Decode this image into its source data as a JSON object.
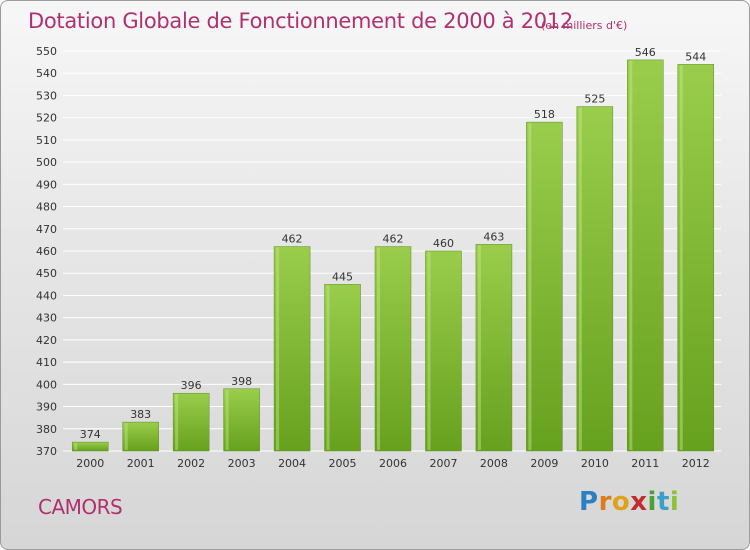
{
  "header": {
    "title": "Dotation Globale de Fonctionnement de 2000 à 2012",
    "unit_note": "(en milliers d'€)"
  },
  "footer": {
    "town": "CAMORS",
    "logo_letters": [
      "P",
      "r",
      "o",
      "x",
      "i",
      "t",
      "i"
    ],
    "logo_colors": [
      "#2b7fc2",
      "#e07b1a",
      "#e0a21a",
      "#c22e2e",
      "#4aa037",
      "#3aa0c8",
      "#8cc23a"
    ]
  },
  "colors": {
    "title": "#b03070",
    "bar_light": "#9acd4c",
    "bar_dark": "#66a11e",
    "grid": "#ffffff",
    "axis_text": "#333333"
  },
  "chart_data": {
    "type": "bar",
    "title": "Dotation Globale de Fonctionnement de 2000 à 2012",
    "subtitle": "(en milliers d'€)",
    "categories": [
      "2000",
      "2001",
      "2002",
      "2003",
      "2004",
      "2005",
      "2006",
      "2007",
      "2008",
      "2009",
      "2010",
      "2011",
      "2012"
    ],
    "values": [
      374,
      383,
      396,
      398,
      462,
      445,
      462,
      460,
      463,
      518,
      525,
      546,
      544
    ],
    "ylim": [
      370,
      550
    ],
    "ytick_step": 10,
    "grid": true,
    "legend": "none"
  }
}
